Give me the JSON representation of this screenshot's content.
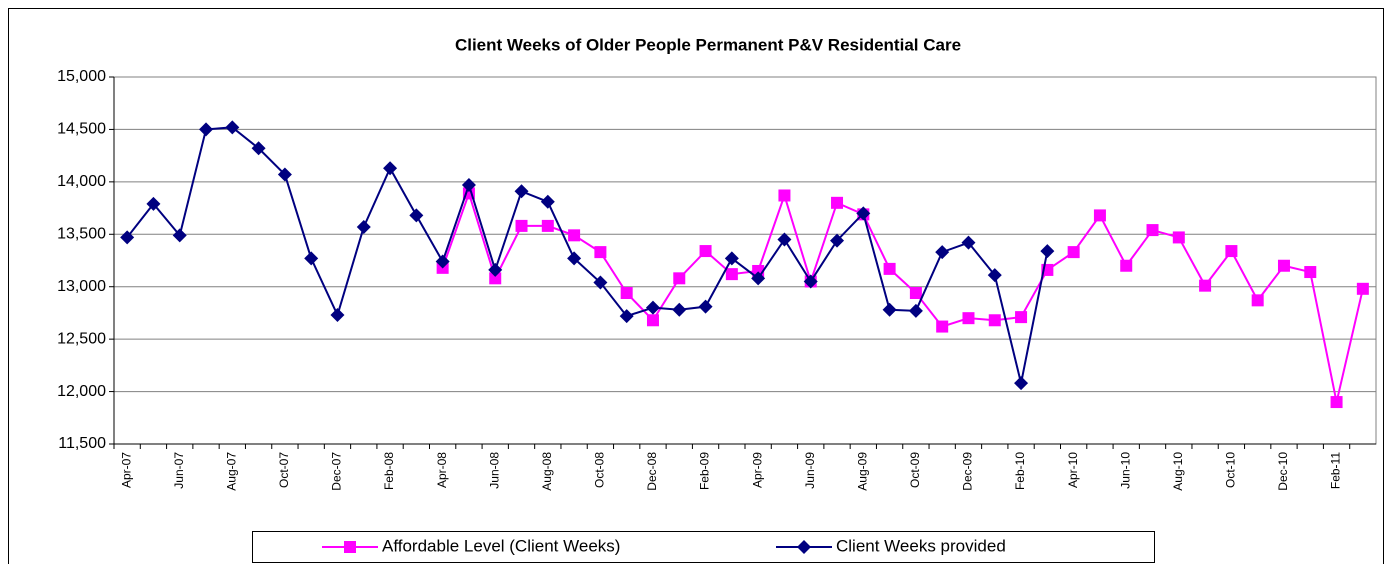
{
  "chart_data": {
    "type": "line",
    "title": "Client Weeks of Older People Permanent P&V Residential Care",
    "categories": [
      "Apr-07",
      null,
      "Jun-07",
      null,
      "Aug-07",
      null,
      "Oct-07",
      null,
      "Dec-07",
      null,
      "Feb-08",
      null,
      "Apr-08",
      null,
      "Jun-08",
      null,
      "Aug-08",
      null,
      "Oct-08",
      null,
      "Dec-08",
      null,
      "Feb-09",
      null,
      "Apr-09",
      null,
      "Jun-09",
      null,
      "Aug-09",
      null,
      "Oct-09",
      null,
      "Dec-09",
      null,
      "Feb-10",
      null,
      "Apr-10",
      null,
      "Jun-10",
      null,
      "Aug-10",
      null,
      "Oct-10",
      null,
      "Dec-10",
      null,
      "Feb-11",
      null
    ],
    "series": [
      {
        "name": "Affordable Level (Client Weeks)",
        "color": "#ff00ff",
        "marker": "square",
        "values": [
          null,
          null,
          null,
          null,
          null,
          null,
          null,
          null,
          null,
          null,
          null,
          null,
          13180,
          13890,
          13080,
          13580,
          13580,
          13490,
          13330,
          12940,
          12680,
          13080,
          13340,
          13120,
          13150,
          13870,
          13050,
          13800,
          13690,
          13170,
          12940,
          12620,
          12700,
          12680,
          12710,
          13160,
          13330,
          13680,
          13200,
          13540,
          13470,
          13010,
          13340,
          12870,
          13200,
          13140,
          11900,
          12980
        ]
      },
      {
        "name": "Client Weeks provided",
        "color": "#000080",
        "marker": "diamond",
        "values": [
          13470,
          13790,
          13490,
          14500,
          14520,
          14320,
          14070,
          13270,
          12730,
          13570,
          14130,
          13680,
          13240,
          13970,
          13160,
          13910,
          13810,
          13270,
          13040,
          12720,
          12800,
          12780,
          12810,
          13270,
          13080,
          13450,
          13050,
          13440,
          13700,
          12780,
          12770,
          13330,
          13420,
          13110,
          12080,
          13340,
          null,
          null,
          null,
          null,
          null,
          null,
          null,
          null,
          null,
          null,
          null,
          null
        ]
      }
    ],
    "ylim": [
      11500,
      15000
    ],
    "yticks": [
      {
        "value": 11500,
        "label": "11,500"
      },
      {
        "value": 12000,
        "label": "12,000"
      },
      {
        "value": 12500,
        "label": "12,500"
      },
      {
        "value": 13000,
        "label": "13,000"
      },
      {
        "value": 13500,
        "label": "13,500"
      },
      {
        "value": 14000,
        "label": "14,000"
      },
      {
        "value": 14500,
        "label": "14,500"
      },
      {
        "value": 15000,
        "label": "15,000"
      }
    ],
    "grid": true,
    "legend": "bottom"
  }
}
